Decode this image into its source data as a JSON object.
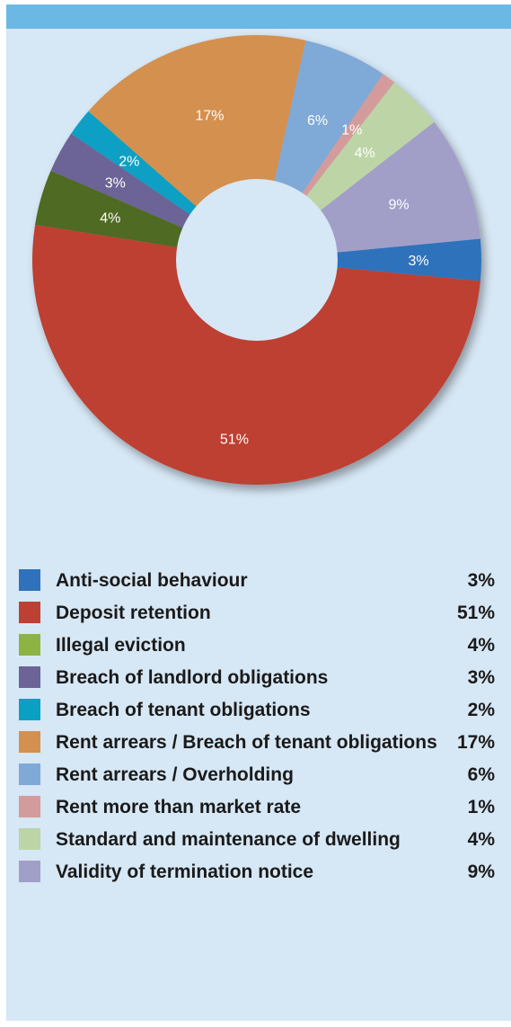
{
  "colors": {
    "panel_bg": "#d6e7f5",
    "top_bar": "#6bb8e4"
  },
  "chart_data": {
    "type": "pie",
    "donut": true,
    "title": "",
    "start_category": "Anti-social behaviour",
    "categories": [
      "Anti-social behaviour",
      "Deposit retention",
      "Illegal eviction",
      "Breach of landlord obligations",
      "Breach of tenant obligations",
      "Rent arrears / Breach of tenant obligations",
      "Rent arrears / Overholding",
      "Rent more than market rate",
      "Standard and maintenance of dwelling",
      "Validity of termination notice"
    ],
    "values": [
      3,
      51,
      4,
      3,
      2,
      17,
      6,
      1,
      4,
      9
    ],
    "slice_labels": [
      "3%",
      "51%",
      "4%",
      "3%",
      "2%",
      "17%",
      "6%",
      "1%",
      "4%",
      "9%"
    ],
    "colors": [
      "#2f72bb",
      "#bd4132",
      "#4f6b24",
      "#6c6396",
      "#0aa0c4",
      "#d4904f",
      "#7fa9d6",
      "#d49b9c",
      "#bdd4a7",
      "#a19fc8"
    ],
    "legend": {
      "placement": "bottom",
      "items": [
        {
          "label": "Anti-social behaviour",
          "value": "3%",
          "color": "#2f72bb"
        },
        {
          "label": "Deposit retention",
          "value": "51%",
          "color": "#bd4132"
        },
        {
          "label": "Illegal eviction",
          "value": "4%",
          "color": "#8db443"
        },
        {
          "label": "Breach of landlord obligations",
          "value": "3%",
          "color": "#6c6396"
        },
        {
          "label": "Breach of tenant obligations",
          "value": "2%",
          "color": "#0aa0c4"
        },
        {
          "label": "Rent arrears / Breach of tenant obligations",
          "value": "17%",
          "color": "#d4904f"
        },
        {
          "label": "Rent arrears / Overholding",
          "value": "6%",
          "color": "#7fa9d6"
        },
        {
          "label": "Rent more than market rate",
          "value": "1%",
          "color": "#d49b9c"
        },
        {
          "label": "Standard and maintenance of dwelling",
          "value": "4%",
          "color": "#bdd4a7"
        },
        {
          "label": "Validity of termination notice",
          "value": "9%",
          "color": "#a19fc8"
        }
      ]
    }
  }
}
